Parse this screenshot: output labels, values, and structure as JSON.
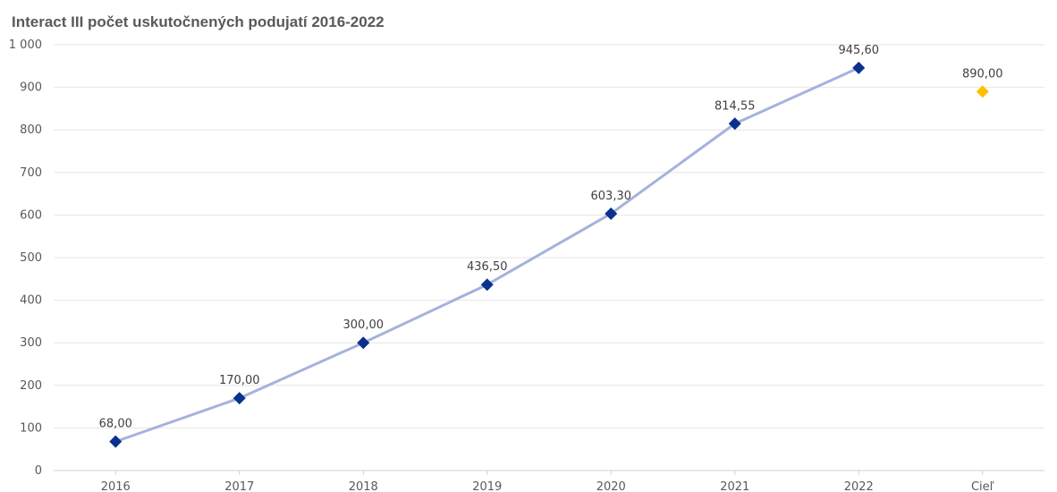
{
  "chart_data": {
    "type": "line",
    "title": "Interact III počet uskutočnených podujatí 2016-2022",
    "xlabel": "",
    "ylabel": "",
    "categories": [
      "2016",
      "2017",
      "2018",
      "2019",
      "2020",
      "2021",
      "2022",
      "Cieľ"
    ],
    "series": [
      {
        "values": [
          68.0,
          170.0,
          300.0,
          436.5,
          603.3,
          814.55,
          945.6,
          null
        ],
        "data_labels": [
          "68,00",
          "170,00",
          "300,00",
          "436,50",
          "603,30",
          "814,55",
          "945,60",
          ""
        ],
        "color": "#0b318f",
        "line_color": "#a5b2dc"
      },
      {
        "values": [
          null,
          null,
          null,
          null,
          null,
          null,
          null,
          890.0
        ],
        "data_labels": [
          "",
          "",
          "",
          "",
          "",
          "",
          "",
          "890,00"
        ],
        "color": "#ffc000"
      }
    ],
    "ylim": [
      0,
      1000
    ],
    "yticks": [
      0,
      100,
      200,
      300,
      400,
      500,
      600,
      700,
      800,
      900,
      1000
    ],
    "ytick_labels": [
      "0",
      "100",
      "200",
      "300",
      "400",
      "500",
      "600",
      "700",
      "800",
      "900",
      "1 000"
    ],
    "grid": true,
    "legend": "none"
  }
}
